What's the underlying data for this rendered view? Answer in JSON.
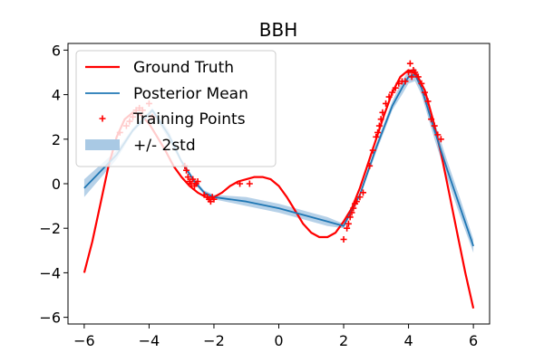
{
  "chart_data": {
    "type": "line",
    "title": "BBH",
    "xlabel": "",
    "ylabel": "",
    "xlim": [
      -6.5,
      6.5
    ],
    "ylim": [
      -6.3,
      6.3
    ],
    "xticks": [
      -6,
      -4,
      -2,
      0,
      2,
      4,
      6
    ],
    "yticks": [
      -6,
      -4,
      -2,
      0,
      2,
      4,
      6
    ],
    "xtick_labels": [
      "−6",
      "−4",
      "−2",
      "0",
      "2",
      "4",
      "6"
    ],
    "ytick_labels": [
      "−6",
      "−4",
      "−2",
      "0",
      "2",
      "4",
      "6"
    ],
    "grid": false,
    "legend_position": "top-left",
    "colors": {
      "ground_truth": "#ff0000",
      "posterior_mean": "#1f77b4",
      "training": "#ff0000",
      "band": "#a9c9e4"
    },
    "series": [
      {
        "name": "Ground Truth",
        "kind": "line",
        "x": [
          -6.0,
          -5.75,
          -5.5,
          -5.25,
          -5.0,
          -4.75,
          -4.5,
          -4.25,
          -4.0,
          -3.75,
          -3.5,
          -3.25,
          -3.0,
          -2.75,
          -2.5,
          -2.25,
          -2.0,
          -1.75,
          -1.5,
          -1.25,
          -1.0,
          -0.75,
          -0.5,
          -0.25,
          0.0,
          0.25,
          0.5,
          0.75,
          1.0,
          1.25,
          1.5,
          1.75,
          2.0,
          2.25,
          2.5,
          2.75,
          3.0,
          3.25,
          3.5,
          3.75,
          4.0,
          4.25,
          4.5,
          4.75,
          5.0,
          5.25,
          5.5,
          5.75,
          6.0
        ],
        "y": [
          -4.0,
          -2.6,
          -0.9,
          0.8,
          2.1,
          2.9,
          3.2,
          3.1,
          2.7,
          2.1,
          1.5,
          0.8,
          0.3,
          -0.1,
          -0.4,
          -0.6,
          -0.6,
          -0.4,
          -0.1,
          0.1,
          0.2,
          0.3,
          0.3,
          0.2,
          -0.1,
          -0.6,
          -1.2,
          -1.8,
          -2.2,
          -2.4,
          -2.4,
          -2.2,
          -1.7,
          -1.1,
          -0.2,
          0.9,
          2.0,
          3.1,
          4.1,
          4.8,
          5.1,
          4.9,
          4.2,
          2.9,
          1.4,
          -0.4,
          -2.2,
          -4.0,
          -5.6
        ]
      },
      {
        "name": "Posterior Mean",
        "kind": "line",
        "x": [
          -6.0,
          -5.0,
          -4.5,
          -3.9,
          -3.4,
          -3.0,
          -2.6,
          -2.3,
          -2.0,
          -1.0,
          0.0,
          1.0,
          1.5,
          2.0,
          2.5,
          3.0,
          3.5,
          3.8,
          4.0,
          4.2,
          4.4,
          4.8,
          5.2,
          5.6,
          6.0
        ],
        "y": [
          -0.2,
          1.3,
          2.4,
          3.3,
          2.2,
          1.0,
          0.1,
          -0.4,
          -0.6,
          -0.8,
          -1.1,
          -1.5,
          -1.7,
          -1.9,
          -0.5,
          1.6,
          3.5,
          4.3,
          4.8,
          4.9,
          4.3,
          2.4,
          0.6,
          -1.1,
          -2.8
        ]
      },
      {
        "name": "Training Points",
        "kind": "scatter",
        "marker": "+",
        "x": [
          -4.9,
          -4.7,
          -4.6,
          -4.5,
          -4.4,
          -4.3,
          -4.2,
          -4.0,
          -3.9,
          -2.9,
          -2.85,
          -2.8,
          -2.75,
          -2.7,
          -2.65,
          -2.6,
          -2.55,
          -2.5,
          -2.3,
          -2.2,
          -2.15,
          -2.1,
          -2.05,
          -2.0,
          -1.2,
          -0.9,
          2.0,
          2.1,
          2.15,
          2.2,
          2.25,
          2.3,
          2.35,
          2.4,
          2.5,
          2.6,
          2.8,
          2.9,
          3.0,
          3.05,
          3.1,
          3.15,
          3.2,
          3.3,
          3.4,
          3.5,
          3.6,
          3.7,
          3.8,
          3.9,
          4.0,
          4.05,
          4.1,
          4.15,
          4.2,
          4.3,
          4.4,
          4.5,
          4.6,
          4.7,
          4.8,
          4.9,
          5.0
        ],
        "y": [
          2.3,
          2.6,
          2.8,
          3.0,
          3.3,
          3.4,
          3.3,
          3.6,
          3.0,
          0.8,
          0.6,
          0.3,
          0.1,
          0.0,
          0.2,
          -0.1,
          0.0,
          0.1,
          -0.5,
          -0.6,
          -0.7,
          -0.8,
          -0.6,
          -0.7,
          0.0,
          0.0,
          -2.5,
          -2.0,
          -1.8,
          -1.5,
          -1.3,
          -1.1,
          -0.9,
          -0.8,
          -0.6,
          -0.4,
          0.8,
          1.5,
          2.1,
          2.3,
          2.6,
          2.9,
          3.2,
          3.6,
          3.9,
          4.1,
          4.3,
          4.5,
          4.6,
          4.6,
          5.0,
          5.4,
          4.8,
          5.1,
          5.0,
          4.8,
          4.5,
          4.1,
          3.7,
          2.9,
          2.6,
          2.2,
          2.0
        ]
      },
      {
        "name": "+/- 2std",
        "kind": "band",
        "x": [
          -6.0,
          -5.0,
          -4.5,
          -3.9,
          -3.4,
          -3.0,
          -2.6,
          -2.3,
          -2.0,
          -1.0,
          0.0,
          1.0,
          1.5,
          2.0,
          2.5,
          3.0,
          3.5,
          3.8,
          4.0,
          4.2,
          4.4,
          4.8,
          5.2,
          5.6,
          6.0
        ],
        "lower": [
          -0.6,
          1.1,
          2.3,
          3.2,
          2.0,
          0.9,
          0.0,
          -0.5,
          -0.7,
          -1.0,
          -1.3,
          -1.7,
          -1.9,
          -2.0,
          -0.6,
          1.4,
          3.3,
          4.0,
          4.5,
          4.6,
          4.0,
          2.0,
          0.2,
          -1.5,
          -3.1
        ],
        "upper": [
          0.2,
          1.5,
          2.5,
          3.4,
          2.4,
          1.1,
          0.2,
          -0.3,
          -0.5,
          -0.6,
          -0.9,
          -1.3,
          -1.5,
          -1.8,
          -0.4,
          1.8,
          3.7,
          4.6,
          5.1,
          5.2,
          4.6,
          2.8,
          1.0,
          -0.7,
          -2.5
        ]
      }
    ]
  }
}
